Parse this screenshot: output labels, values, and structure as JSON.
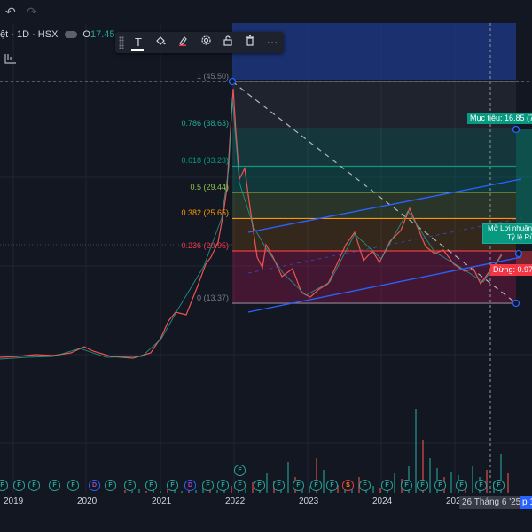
{
  "header": {
    "undo_icon": "undo-icon",
    "redo_icon": "redo-icon",
    "symbol_text": "ệt · 1D · HSX",
    "open_label": "O",
    "open_value": "17.45"
  },
  "toolbar": {
    "tools": [
      "text-tool-icon",
      "fill-bucket-icon",
      "pen-color-icon",
      "settings-icon",
      "lock-icon",
      "trash-icon",
      "more-icon"
    ],
    "text_glyph": "T",
    "more_glyph": "···"
  },
  "fib": {
    "levels": [
      {
        "ratio": "1",
        "price": 45.5,
        "label": "1 (45.50)",
        "color": "#787b86"
      },
      {
        "ratio": "0.786",
        "price": 38.63,
        "label": "0.786 (38.63)",
        "color": "#22ab94"
      },
      {
        "ratio": "0.618",
        "price": 33.23,
        "label": "0.618 (33.23)",
        "color": "#089981"
      },
      {
        "ratio": "0.5",
        "price": 29.44,
        "label": "0.5 (29.44)",
        "color": "#8bc34a"
      },
      {
        "ratio": "0.382",
        "price": 25.65,
        "label": "0.382 (25.65)",
        "color": "#ff9800"
      },
      {
        "ratio": "0.236",
        "price": 20.95,
        "label": "0.236 (20.95)",
        "color": "#f23645"
      },
      {
        "ratio": "0",
        "price": 13.37,
        "label": "0 (13.37)",
        "color": "#787b86"
      }
    ]
  },
  "position": {
    "target_label": "Mục tiêu: 16.85 (7",
    "stop_label": "Dừng: 0.97",
    "open_pnl_label": "Mở Lợi nhuận",
    "ratio_label": "Tỷ lệ Rủ",
    "target_color": "#089981",
    "stop_color": "#f23645"
  },
  "time_axis": {
    "years": [
      "2019",
      "2020",
      "2021",
      "2022",
      "2023",
      "2024",
      "202"
    ],
    "crosshair_label": "26 Tháng 6 '25",
    "right_label": "p 11"
  },
  "events": {
    "badge_letter": "F",
    "other_letters": [
      "D",
      "S"
    ]
  },
  "colors": {
    "background": "#131722",
    "up": "#26a69a",
    "down": "#ef5350",
    "channel": "#2962ff",
    "highlight_band": "#1e3a8a"
  }
}
